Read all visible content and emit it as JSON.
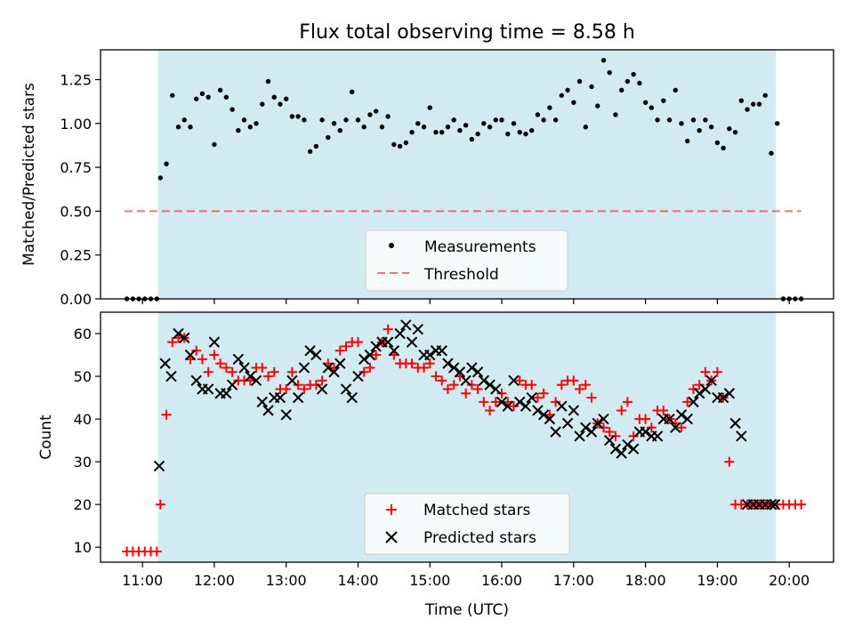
{
  "title": "Flux total observing time = 8.58 h",
  "colors": {
    "shade": "#add8e6",
    "threshold": "#ff0000",
    "measurement": "#000000",
    "matched": "#ff0000",
    "predicted": "#000000"
  },
  "chart_data": [
    {
      "type": "scatter",
      "title": "Flux total observing time = 8.58 h",
      "xlabel": "",
      "ylabel": "Matched/Predicted stars",
      "xlim": [
        "10:25",
        "20:37"
      ],
      "ylim": [
        0,
        1.42
      ],
      "yticks": [
        "0.00",
        "0.25",
        "0.50",
        "0.75",
        "1.00",
        "1.25"
      ],
      "grid": false,
      "legend_position": "bottom-center",
      "shaded_region": {
        "x_start": "11:13",
        "x_end": "19:49",
        "color": "lightblue"
      },
      "threshold": {
        "name": "Threshold",
        "y": 0.5,
        "x_start": "10:45",
        "x_end": "20:10",
        "style": "dashed"
      },
      "series": [
        {
          "name": "Measurements",
          "marker": "dot",
          "x": [
            "10:47",
            "10:52",
            "10:57",
            "11:02",
            "11:07",
            "11:12",
            "11:15",
            "11:20",
            "11:25",
            "11:30",
            "11:35",
            "11:40",
            "11:45",
            "11:50",
            "11:55",
            "12:00",
            "12:05",
            "12:10",
            "12:15",
            "12:20",
            "12:25",
            "12:30",
            "12:35",
            "12:40",
            "12:45",
            "12:50",
            "12:55",
            "13:00",
            "13:05",
            "13:10",
            "13:15",
            "13:20",
            "13:25",
            "13:30",
            "13:35",
            "13:40",
            "13:45",
            "13:50",
            "13:55",
            "14:00",
            "14:05",
            "14:10",
            "14:15",
            "14:20",
            "14:25",
            "14:30",
            "14:35",
            "14:40",
            "14:45",
            "14:50",
            "14:55",
            "15:00",
            "15:05",
            "15:10",
            "15:15",
            "15:20",
            "15:25",
            "15:30",
            "15:35",
            "15:40",
            "15:45",
            "15:50",
            "15:55",
            "16:00",
            "16:05",
            "16:10",
            "16:15",
            "16:20",
            "16:25",
            "16:30",
            "16:35",
            "16:40",
            "16:45",
            "16:50",
            "16:55",
            "17:00",
            "17:05",
            "17:10",
            "17:15",
            "17:20",
            "17:25",
            "17:30",
            "17:35",
            "17:40",
            "17:45",
            "17:50",
            "17:55",
            "18:00",
            "18:05",
            "18:10",
            "18:15",
            "18:20",
            "18:25",
            "18:30",
            "18:35",
            "18:40",
            "18:45",
            "18:50",
            "18:55",
            "19:00",
            "19:05",
            "19:10",
            "19:15",
            "19:20",
            "19:25",
            "19:30",
            "19:35",
            "19:40",
            "19:45",
            "19:50",
            "19:55",
            "20:00",
            "20:05",
            "20:10"
          ],
          "y": [
            0.0,
            0.0,
            0.0,
            0.0,
            0.0,
            0.0,
            0.69,
            0.77,
            1.16,
            0.98,
            1.02,
            0.98,
            1.14,
            1.17,
            1.15,
            0.88,
            1.19,
            1.15,
            1.08,
            0.96,
            1.02,
            0.98,
            1.0,
            1.11,
            1.24,
            1.15,
            1.11,
            1.14,
            1.04,
            1.04,
            1.02,
            0.84,
            0.87,
            1.02,
            0.92,
            1.0,
            0.96,
            1.02,
            1.18,
            1.02,
            0.98,
            1.05,
            1.07,
            0.98,
            1.04,
            0.88,
            0.87,
            0.89,
            0.95,
            1.0,
            0.98,
            1.09,
            0.95,
            0.95,
            0.98,
            1.02,
            0.96,
            0.99,
            0.91,
            0.94,
            1.0,
            0.98,
            1.02,
            1.02,
            0.94,
            1.0,
            0.95,
            0.94,
            0.96,
            1.05,
            1.02,
            1.09,
            1.02,
            1.16,
            1.19,
            1.12,
            1.24,
            0.98,
            1.21,
            1.1,
            1.36,
            1.29,
            1.05,
            1.19,
            1.24,
            1.28,
            1.23,
            1.12,
            1.09,
            1.02,
            1.13,
            1.02,
            1.19,
            1.0,
            0.9,
            1.02,
            0.96,
            1.02,
            0.98,
            0.89,
            0.86,
            0.97,
            0.95,
            1.13,
            1.08,
            1.11,
            1.11,
            1.16,
            0.83,
            1.0,
            0.0,
            0.0,
            0.0,
            0.0
          ]
        }
      ]
    },
    {
      "type": "scatter",
      "title": "",
      "xlabel": "Time (UTC)",
      "ylabel": "Count",
      "xlim": [
        "10:25",
        "20:37"
      ],
      "ylim": [
        6.5,
        65.0
      ],
      "yticks": [
        "10",
        "20",
        "30",
        "40",
        "50",
        "60"
      ],
      "xticks": [
        "11:00",
        "12:00",
        "13:00",
        "14:00",
        "15:00",
        "16:00",
        "17:00",
        "18:00",
        "19:00",
        "20:00"
      ],
      "grid": false,
      "legend_position": "bottom-center",
      "shaded_region": {
        "x_start": "11:13",
        "x_end": "19:49",
        "color": "lightblue"
      },
      "series": [
        {
          "name": "Matched stars",
          "marker": "plus",
          "x": [
            "10:47",
            "10:52",
            "10:57",
            "11:02",
            "11:07",
            "11:12",
            "11:15",
            "11:20",
            "11:25",
            "11:30",
            "11:35",
            "11:40",
            "11:45",
            "11:50",
            "11:55",
            "12:00",
            "12:05",
            "12:10",
            "12:15",
            "12:20",
            "12:25",
            "12:30",
            "12:35",
            "12:40",
            "12:45",
            "12:50",
            "12:55",
            "13:00",
            "13:05",
            "13:10",
            "13:15",
            "13:20",
            "13:25",
            "13:30",
            "13:35",
            "13:40",
            "13:45",
            "13:50",
            "13:55",
            "14:00",
            "14:05",
            "14:10",
            "14:15",
            "14:20",
            "14:25",
            "14:30",
            "14:35",
            "14:40",
            "14:45",
            "14:50",
            "14:55",
            "15:00",
            "15:05",
            "15:10",
            "15:15",
            "15:20",
            "15:25",
            "15:30",
            "15:35",
            "15:40",
            "15:45",
            "15:50",
            "15:55",
            "16:00",
            "16:05",
            "16:10",
            "16:15",
            "16:20",
            "16:25",
            "16:30",
            "16:35",
            "16:40",
            "16:45",
            "16:50",
            "16:55",
            "17:00",
            "17:05",
            "17:10",
            "17:15",
            "17:20",
            "17:25",
            "17:30",
            "17:35",
            "17:40",
            "17:45",
            "17:50",
            "17:55",
            "18:00",
            "18:05",
            "18:10",
            "18:15",
            "18:20",
            "18:25",
            "18:30",
            "18:35",
            "18:40",
            "18:45",
            "18:50",
            "18:55",
            "19:00",
            "19:05",
            "19:10",
            "19:15",
            "19:20",
            "19:25",
            "19:30",
            "19:35",
            "19:40",
            "19:45",
            "19:50",
            "19:55",
            "20:00",
            "20:05",
            "20:10"
          ],
          "y": [
            9,
            9,
            9,
            9,
            9,
            9,
            20,
            41,
            58,
            59,
            59,
            54,
            56,
            54,
            51,
            55,
            53,
            52,
            51,
            49,
            49,
            49,
            52,
            52,
            50,
            51,
            47,
            47,
            51,
            48,
            47,
            48,
            48,
            49,
            53,
            52,
            56,
            57,
            58,
            58,
            51,
            52,
            55,
            58,
            61,
            55,
            53,
            53,
            53,
            52,
            52,
            53,
            50,
            49,
            47,
            48,
            50,
            46,
            48,
            47,
            44,
            42,
            44,
            46,
            44,
            43,
            49,
            48,
            48,
            45,
            46,
            41,
            44,
            48,
            49,
            49,
            47,
            48,
            45,
            39,
            38,
            37,
            36,
            42,
            44,
            36,
            40,
            40,
            38,
            42,
            42,
            40,
            39,
            38,
            44,
            47,
            48,
            51,
            49,
            51,
            45,
            30,
            20,
            20,
            20,
            20,
            20,
            20,
            20,
            20,
            20,
            20,
            20,
            20
          ]
        },
        {
          "name": "Predicted stars",
          "marker": "x",
          "x": [
            "11:14",
            "11:19",
            "11:24",
            "11:30",
            "11:35",
            "11:40",
            "11:45",
            "11:50",
            "11:55",
            "12:00",
            "12:05",
            "12:10",
            "12:15",
            "12:20",
            "12:25",
            "12:30",
            "12:35",
            "12:40",
            "12:45",
            "12:50",
            "12:55",
            "13:00",
            "13:05",
            "13:10",
            "13:15",
            "13:20",
            "13:25",
            "13:30",
            "13:35",
            "13:40",
            "13:45",
            "13:50",
            "13:55",
            "14:00",
            "14:05",
            "14:10",
            "14:15",
            "14:20",
            "14:25",
            "14:30",
            "14:35",
            "14:40",
            "14:45",
            "14:50",
            "14:55",
            "15:00",
            "15:05",
            "15:10",
            "15:15",
            "15:20",
            "15:25",
            "15:30",
            "15:35",
            "15:40",
            "15:45",
            "15:50",
            "15:55",
            "16:00",
            "16:05",
            "16:10",
            "16:15",
            "16:20",
            "16:25",
            "16:30",
            "16:35",
            "16:40",
            "16:45",
            "16:50",
            "16:55",
            "17:00",
            "17:05",
            "17:10",
            "17:15",
            "17:20",
            "17:25",
            "17:30",
            "17:35",
            "17:40",
            "17:45",
            "17:50",
            "17:55",
            "18:00",
            "18:05",
            "18:10",
            "18:15",
            "18:20",
            "18:25",
            "18:30",
            "18:35",
            "18:40",
            "18:45",
            "18:50",
            "18:55",
            "19:00",
            "19:05",
            "19:10",
            "19:15",
            "19:20",
            "19:25",
            "19:30",
            "19:35",
            "19:40",
            "19:45",
            "19:48"
          ],
          "y": [
            29,
            53,
            50,
            60,
            59,
            55,
            49,
            47,
            47,
            58,
            46,
            46,
            48,
            54,
            52,
            50,
            49,
            44,
            42,
            45,
            45,
            41,
            49,
            45,
            52,
            56,
            55,
            47,
            52,
            51,
            53,
            47,
            45,
            50,
            54,
            55,
            57,
            58,
            58,
            56,
            60,
            62,
            58,
            61,
            55,
            55,
            56,
            56,
            53,
            52,
            51,
            49,
            52,
            51,
            49,
            48,
            47,
            44,
            43,
            49,
            44,
            43,
            45,
            42,
            41,
            40,
            37,
            43,
            39,
            42,
            36,
            38,
            37,
            39,
            40,
            35,
            33,
            32,
            34,
            33,
            37,
            37,
            36,
            36,
            40,
            40,
            38,
            41,
            40,
            44,
            46,
            47,
            49,
            45,
            45,
            46,
            39,
            36,
            20,
            20,
            20,
            20,
            20,
            20
          ]
        }
      ]
    }
  ]
}
